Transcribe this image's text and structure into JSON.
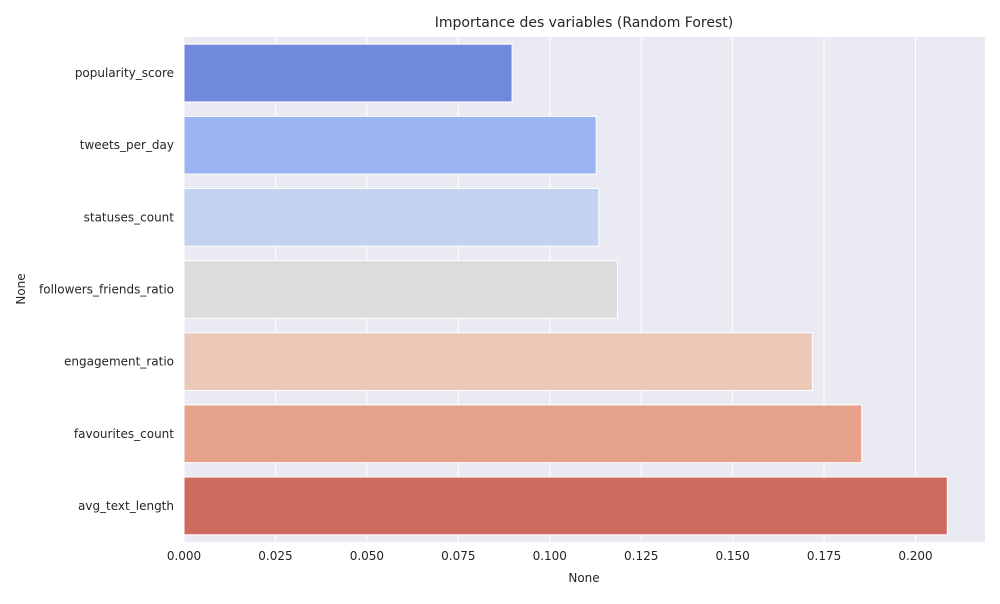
{
  "chart_data": {
    "type": "bar",
    "orientation": "horizontal",
    "title": "Importance des variables (Random Forest)",
    "xlabel": "None",
    "ylabel": "None",
    "categories": [
      "popularity_score",
      "tweets_per_day",
      "statuses_count",
      "followers_friends_ratio",
      "engagement_ratio",
      "favourites_count",
      "avg_text_length"
    ],
    "values": [
      0.0897,
      0.1127,
      0.1134,
      0.1185,
      0.1718,
      0.1853,
      0.2087
    ],
    "colors": [
      "#7089dd",
      "#9bb4f2",
      "#c2d2f0",
      "#dcdcdc",
      "#ecc8b8",
      "#e5a189",
      "#cd6b60"
    ],
    "xlim": [
      0.0,
      0.219
    ],
    "xticks": [
      0.0,
      0.025,
      0.05,
      0.075,
      0.1,
      0.125,
      0.15,
      0.175,
      0.2
    ],
    "xtick_labels": [
      "0.000",
      "0.025",
      "0.050",
      "0.075",
      "0.100",
      "0.125",
      "0.150",
      "0.175",
      "0.200"
    ],
    "grid": true,
    "background": "#eaeaf2"
  }
}
